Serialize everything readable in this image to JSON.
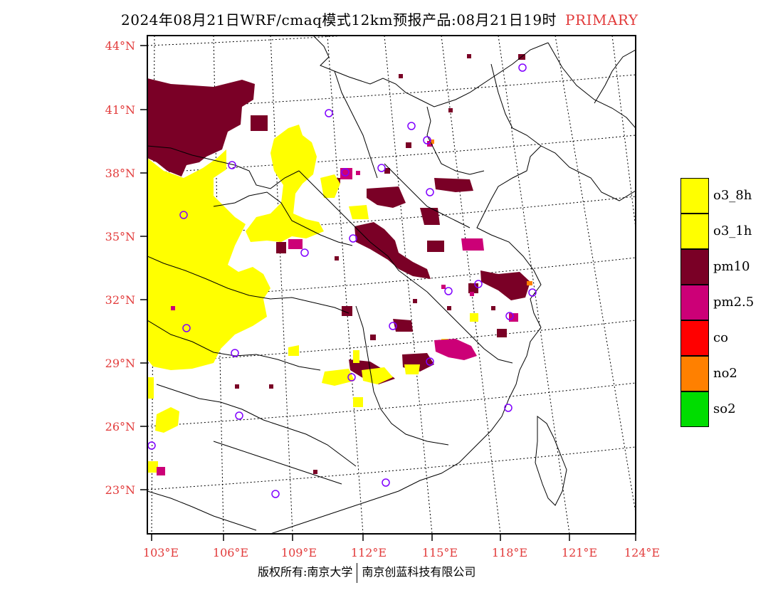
{
  "title": {
    "main": "2024年08月21日WRF/cmaq模式12km预报产品:08月21日19时",
    "tag": "PRIMARY"
  },
  "lat_labels": [
    "44°N",
    "41°N",
    "38°N",
    "35°N",
    "32°N",
    "29°N",
    "26°N",
    "23°N"
  ],
  "lon_labels": [
    "103°E",
    "106°E",
    "109°E",
    "112°E",
    "115°E",
    "118°E",
    "121°E",
    "124°E"
  ],
  "legend": [
    {
      "label": "o3_8h",
      "color": "#ffff00"
    },
    {
      "label": "o3_1h",
      "color": "#ffff00"
    },
    {
      "label": "pm10",
      "color": "#7a0026"
    },
    {
      "label": "pm2.5",
      "color": "#cc0077"
    },
    {
      "label": "co",
      "color": "#ff0000"
    },
    {
      "label": "no2",
      "color": "#ff8000"
    },
    {
      "label": "so2",
      "color": "#00dd00"
    }
  ],
  "copyright": {
    "left": "版权所有:南京大学",
    "right": "南京创蓝科技有限公司"
  },
  "colors": {
    "o3": "#ffff00",
    "pm10": "#7a0026",
    "pm25": "#cc0077",
    "no2": "#ff8000",
    "station": "#8000ff",
    "label": "#e23b3b"
  }
}
